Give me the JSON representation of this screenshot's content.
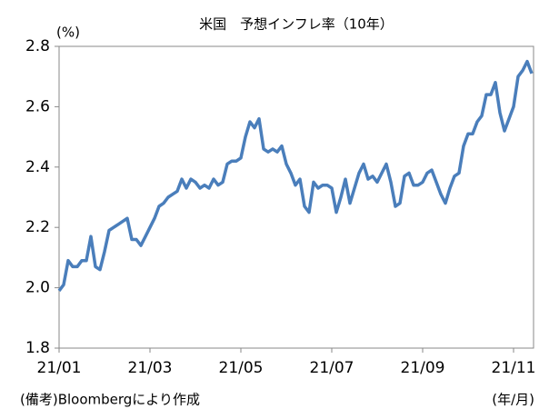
{
  "chart_data": {
    "type": "line",
    "title": "米国　予想インフレ率（10年）",
    "y_unit": "(%)",
    "x_unit": "(年/月)",
    "source": "(備考)Bloombergにより作成",
    "x": [
      0,
      0.1,
      0.2,
      0.3,
      0.4,
      0.5,
      0.6,
      0.7,
      0.8,
      0.9,
      1,
      1.1,
      1.2,
      1.3,
      1.4,
      1.5,
      1.6,
      1.7,
      1.8,
      1.9,
      2,
      2.1,
      2.2,
      2.3,
      2.4,
      2.5,
      2.6,
      2.7,
      2.8,
      2.9,
      3,
      3.1,
      3.2,
      3.3,
      3.4,
      3.5,
      3.6,
      3.7,
      3.8,
      3.9,
      4,
      4.1,
      4.2,
      4.3,
      4.4,
      4.5,
      4.6,
      4.7,
      4.8,
      4.9,
      5,
      5.1,
      5.2,
      5.3,
      5.4,
      5.5,
      5.6,
      5.7,
      5.8,
      5.9,
      6,
      6.1,
      6.2,
      6.3,
      6.4,
      6.5,
      6.6,
      6.7,
      6.8,
      6.9,
      7,
      7.1,
      7.2,
      7.3,
      7.4,
      7.5,
      7.6,
      7.7,
      7.8,
      7.9,
      8,
      8.1,
      8.2,
      8.3,
      8.4,
      8.5,
      8.6,
      8.7,
      8.8,
      8.9,
      9,
      9.1,
      9.2,
      9.3,
      9.4,
      9.5,
      9.6,
      9.7,
      9.8,
      9.9,
      10,
      10.1,
      10.2,
      10.3,
      10.4
    ],
    "series": [
      {
        "name": "予想インフレ率",
        "color": "#4a7ebb",
        "values": [
          1.99,
          2.01,
          2.09,
          2.07,
          2.07,
          2.09,
          2.09,
          2.17,
          2.07,
          2.06,
          2.12,
          2.19,
          2.2,
          2.21,
          2.22,
          2.23,
          2.16,
          2.16,
          2.14,
          2.17,
          2.2,
          2.23,
          2.27,
          2.28,
          2.3,
          2.31,
          2.32,
          2.36,
          2.33,
          2.36,
          2.35,
          2.33,
          2.34,
          2.33,
          2.36,
          2.34,
          2.35,
          2.41,
          2.42,
          2.42,
          2.43,
          2.5,
          2.55,
          2.53,
          2.56,
          2.46,
          2.45,
          2.46,
          2.45,
          2.47,
          2.41,
          2.38,
          2.34,
          2.36,
          2.27,
          2.25,
          2.35,
          2.33,
          2.34,
          2.34,
          2.33,
          2.25,
          2.3,
          2.36,
          2.28,
          2.33,
          2.38,
          2.41,
          2.36,
          2.37,
          2.35,
          2.38,
          2.41,
          2.35,
          2.27,
          2.28,
          2.37,
          2.38,
          2.34,
          2.34,
          2.35,
          2.38,
          2.39,
          2.35,
          2.31,
          2.28,
          2.33,
          2.37,
          2.38,
          2.47,
          2.51,
          2.51,
          2.55,
          2.57,
          2.64,
          2.64,
          2.68,
          2.58,
          2.52,
          2.56,
          2.6,
          2.7,
          2.72,
          2.75,
          2.71
        ]
      }
    ],
    "xlim": [
      0,
      10.44
    ],
    "xticks": [
      {
        "value": 0,
        "label": "21/01"
      },
      {
        "value": 2,
        "label": "21/03"
      },
      {
        "value": 4,
        "label": "21/05"
      },
      {
        "value": 6,
        "label": "21/07"
      },
      {
        "value": 8,
        "label": "21/09"
      },
      {
        "value": 10,
        "label": "21/11"
      }
    ],
    "ylim": [
      1.8,
      2.8
    ],
    "yticks": [
      1.8,
      {
        "value": 2,
        "label": "2.0"
      },
      2.2,
      2.4,
      2.6,
      2.8
    ],
    "grid": false
  }
}
